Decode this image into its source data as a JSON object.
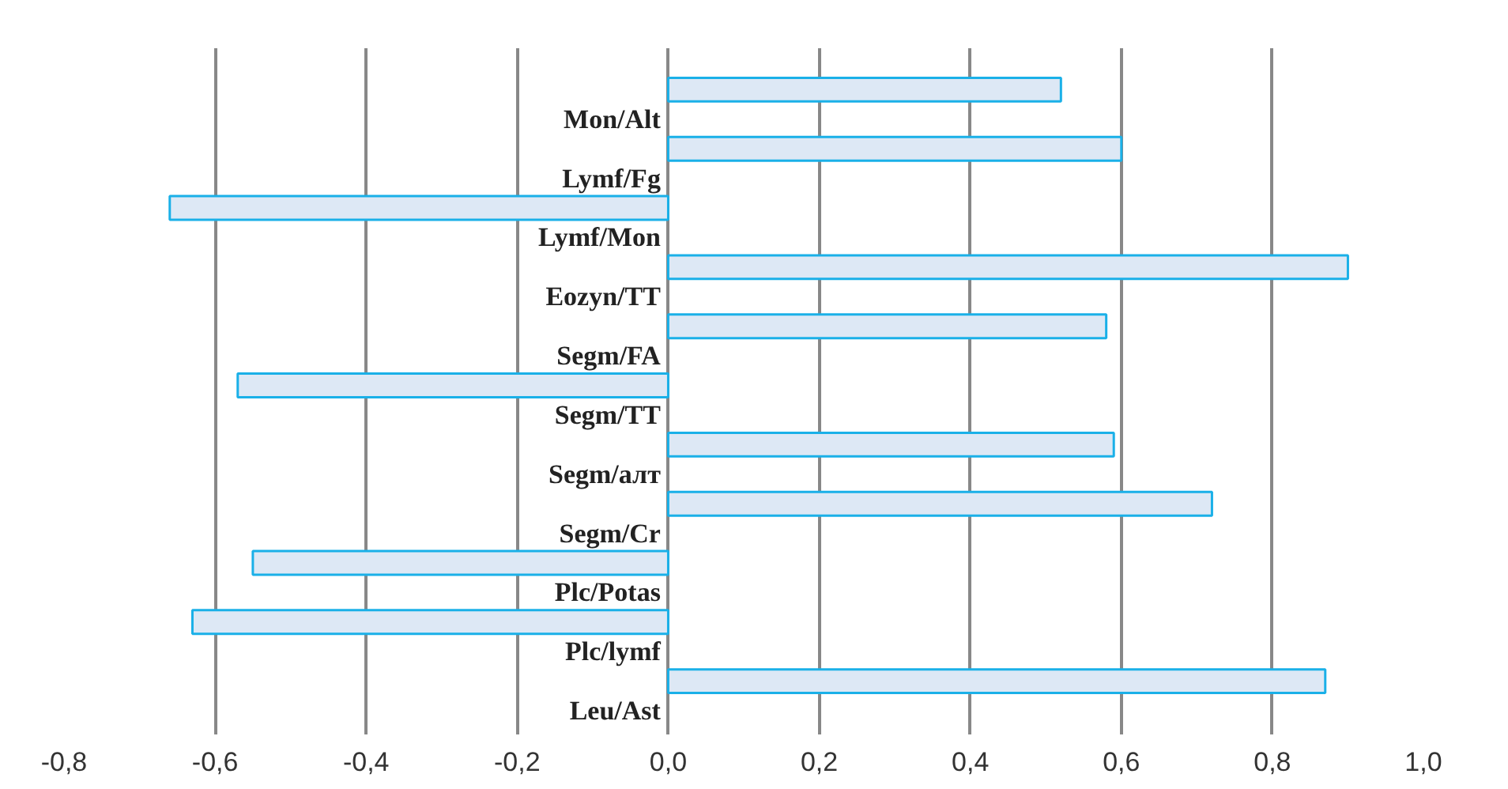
{
  "chart_data": {
    "type": "bar",
    "orientation": "horizontal",
    "categories": [
      "Mon/Alt",
      "Lymf/Fg",
      "Lymf/Mon",
      "Eozyn/TT",
      "Segm/FA",
      "Segm/TT",
      "Segm/алт",
      "Segm/Cr",
      "Plc/Potas",
      "Plc/lymf",
      "Leu/Ast"
    ],
    "values": [
      0.52,
      0.6,
      -0.66,
      0.9,
      0.58,
      -0.57,
      0.59,
      0.72,
      -0.55,
      -0.63,
      0.87
    ],
    "color": "#dde8f5",
    "xlim": [
      -0.8,
      1.0
    ],
    "xticks": [
      {
        "value": -0.8,
        "label": "-0,8"
      },
      {
        "value": -0.6,
        "label": "-0,6"
      },
      {
        "value": -0.4,
        "label": "-0,4"
      },
      {
        "value": -0.2,
        "label": "-0,2"
      },
      {
        "value": 0,
        "label": "0,0"
      },
      {
        "value": 0.2,
        "label": "0,2"
      },
      {
        "value": 0.4,
        "label": "0,4"
      },
      {
        "value": 0.6,
        "label": "0,6"
      },
      {
        "value": 0.8,
        "label": "0,8"
      },
      {
        "value": 1.0,
        "label": "1,0"
      }
    ],
    "grid": "x"
  }
}
